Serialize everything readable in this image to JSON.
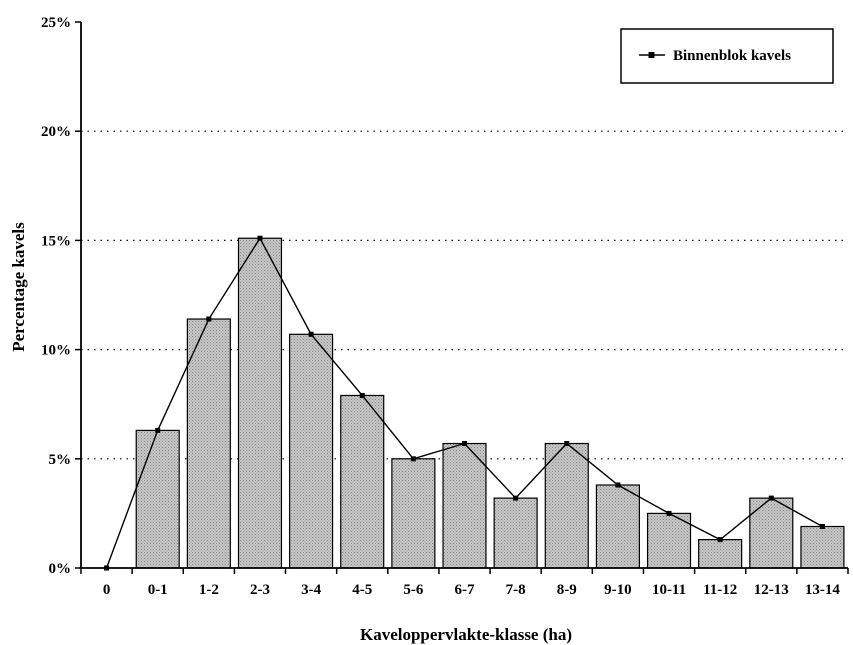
{
  "chart_data": {
    "type": "bar",
    "categories": [
      "0",
      "0-1",
      "1-2",
      "2-3",
      "3-4",
      "4-5",
      "5-6",
      "6-7",
      "7-8",
      "8-9",
      "9-10",
      "10-11",
      "11-12",
      "12-13",
      "13-14"
    ],
    "values": [
      0,
      6.3,
      11.4,
      15.1,
      10.7,
      7.9,
      5.0,
      5.7,
      3.2,
      5.7,
      3.8,
      2.5,
      1.3,
      3.2,
      1.9
    ],
    "series": [
      {
        "name": "Binnenblok kavels",
        "values": [
          0,
          6.3,
          11.4,
          15.1,
          10.7,
          7.9,
          5.0,
          5.7,
          3.2,
          5.7,
          3.8,
          2.5,
          1.3,
          3.2,
          1.9
        ]
      }
    ],
    "bar_values": [
      null,
      6.3,
      11.4,
      15.1,
      10.7,
      7.9,
      5.0,
      5.7,
      3.2,
      5.7,
      3.8,
      2.5,
      1.3,
      3.2,
      1.9
    ],
    "xlabel": "Kaveloppervlakte-klasse (ha)",
    "ylabel": "Percentage kavels",
    "ylim": [
      0,
      25
    ],
    "yticks": [
      "0%",
      "5%",
      "10%",
      "15%",
      "20%",
      "25%"
    ],
    "grid": "horizontal dotted",
    "legend": {
      "position": "top-right",
      "label": "Binnenblok kavels"
    },
    "colors": {
      "bar_fill": "#b8b8b8",
      "line": "#000000"
    }
  }
}
